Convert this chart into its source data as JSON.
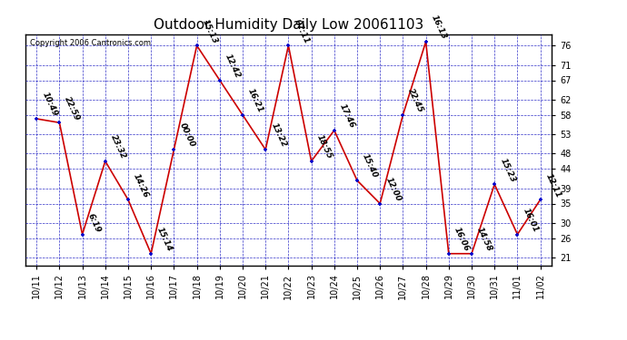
{
  "title": "Outdoor Humidity Daily Low 20061103",
  "copyright": "Copyright 2006 Cantronics.com",
  "background_color": "#ffffff",
  "plot_bg_color": "#ffffff",
  "grid_color": "#0000bb",
  "line_color": "#cc0000",
  "marker_color": "#0000cc",
  "x_labels": [
    "10/11",
    "10/12",
    "10/13",
    "10/14",
    "10/15",
    "10/16",
    "10/17",
    "10/18",
    "10/19",
    "10/20",
    "10/21",
    "10/22",
    "10/23",
    "10/24",
    "10/25",
    "10/26",
    "10/27",
    "10/28",
    "10/29",
    "10/30",
    "10/31",
    "11/01",
    "11/02"
  ],
  "y_values": [
    57,
    56,
    27,
    46,
    36,
    22,
    49,
    76,
    67,
    58,
    49,
    76,
    46,
    54,
    41,
    35,
    58,
    77,
    22,
    22,
    40,
    27,
    36
  ],
  "point_labels": [
    "10:49",
    "22:59",
    "6:19",
    "23:32",
    "14:26",
    "15:14",
    "00:00",
    "15:13",
    "12:42",
    "16:21",
    "13:22",
    "07:11",
    "18:55",
    "17:46",
    "15:40",
    "12:00",
    "22:45",
    "16:13",
    "16:06",
    "14:58",
    "15:23",
    "16:01",
    "12:11"
  ],
  "ylim_min": 19,
  "ylim_max": 79,
  "yticks": [
    21,
    26,
    30,
    35,
    39,
    44,
    48,
    53,
    58,
    62,
    67,
    71,
    76
  ],
  "title_fontsize": 11,
  "tick_fontsize": 7,
  "label_fontsize": 6.5,
  "copyright_fontsize": 6
}
